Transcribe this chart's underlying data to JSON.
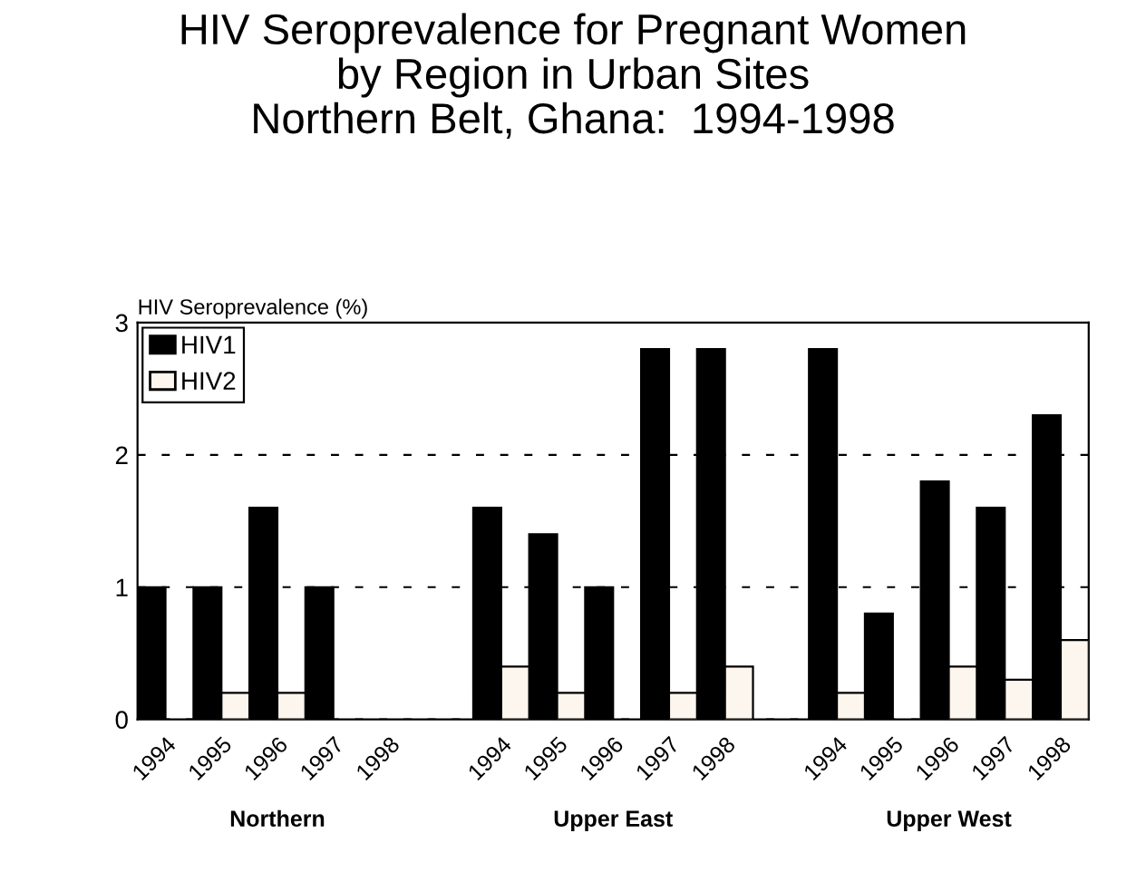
{
  "chart_data": {
    "type": "bar",
    "title": "HIV Seroprevalence for Pregnant Women\nby Region in Urban Sites\nNorthern Belt, Ghana:  1994-1998",
    "ylabel": "HIV Seroprevalence (%)",
    "categories": [
      "1994",
      "1995",
      "1996",
      "1997",
      "1998",
      null,
      "1994",
      "1995",
      "1996",
      "1997",
      "1998",
      null,
      "1994",
      "1995",
      "1996",
      "1997",
      "1998"
    ],
    "series": [
      {
        "name": "HIV1",
        "color": "#000000",
        "values": [
          1.0,
          1.0,
          1.6,
          1.0,
          null,
          null,
          1.6,
          1.4,
          1.0,
          2.8,
          2.8,
          null,
          2.8,
          0.8,
          1.8,
          1.6,
          2.3
        ]
      },
      {
        "name": "HIV2",
        "color": "#fdf6ee",
        "values": [
          null,
          0.2,
          0.2,
          null,
          null,
          null,
          0.4,
          0.2,
          null,
          0.2,
          0.4,
          null,
          0.2,
          null,
          0.4,
          0.3,
          0.6
        ]
      }
    ],
    "annotations": [
      "Northern",
      "Upper East",
      "Upper West"
    ],
    "ylim": [
      0,
      3
    ],
    "yticks": [
      0,
      1,
      2,
      3
    ],
    "grid": "y",
    "line_style": "dashed",
    "legend": "top left"
  }
}
